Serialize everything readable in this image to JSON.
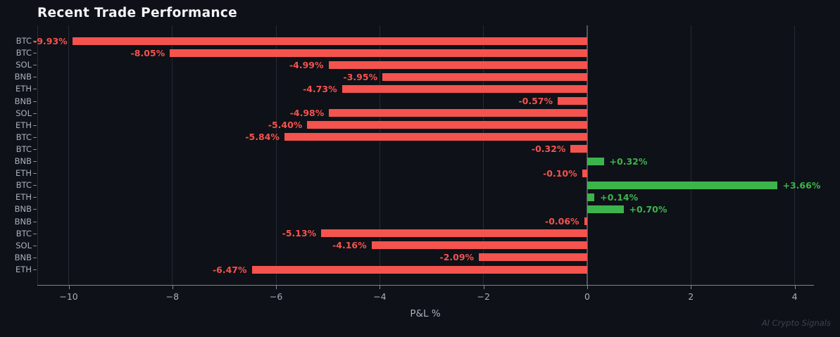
{
  "title": "Recent Trade Performance",
  "watermark": "AI Crypto Signals",
  "chart_data": {
    "type": "bar",
    "orientation": "horizontal",
    "title": "Recent Trade Performance",
    "xlabel": "P&L %",
    "ylabel": "",
    "xlim": [
      -10.605,
      4.359
    ],
    "xticks": [
      -10,
      -8,
      -6,
      -4,
      -2,
      0,
      2,
      4
    ],
    "grid": true,
    "zero_line": true,
    "categories": [
      "BTC",
      "BTC",
      "SOL",
      "BNB",
      "ETH",
      "BNB",
      "SOL",
      "ETH",
      "BTC",
      "BTC",
      "BNB",
      "ETH",
      "BTC",
      "ETH",
      "BNB",
      "BNB",
      "BTC",
      "SOL",
      "BNB",
      "ETH"
    ],
    "values": [
      -9.93,
      -8.05,
      -4.99,
      -3.95,
      -4.73,
      -0.57,
      -4.98,
      -5.4,
      -5.84,
      -0.32,
      0.32,
      -0.1,
      3.66,
      0.14,
      0.7,
      -0.06,
      -5.13,
      -4.16,
      -2.09,
      -6.47
    ],
    "value_labels": [
      "-9.93%",
      "-8.05%",
      "-4.99%",
      "-3.95%",
      "-4.73%",
      "-0.57%",
      "-4.98%",
      "-5.40%",
      "-5.84%",
      "-0.32%",
      "+0.32%",
      "-0.10%",
      "+3.66%",
      "+0.14%",
      "+0.70%",
      "-0.06%",
      "-5.13%",
      "-4.16%",
      "-2.09%",
      "-6.47%"
    ],
    "colors": {
      "negative_bar": "#f4534e",
      "positive_bar": "#3cb44c",
      "background": "#0e1117",
      "grid": "#242a35",
      "zero_line": "#4f5661",
      "tick_text": "#a9b1bc",
      "title_text": "#f2f4f7"
    }
  }
}
